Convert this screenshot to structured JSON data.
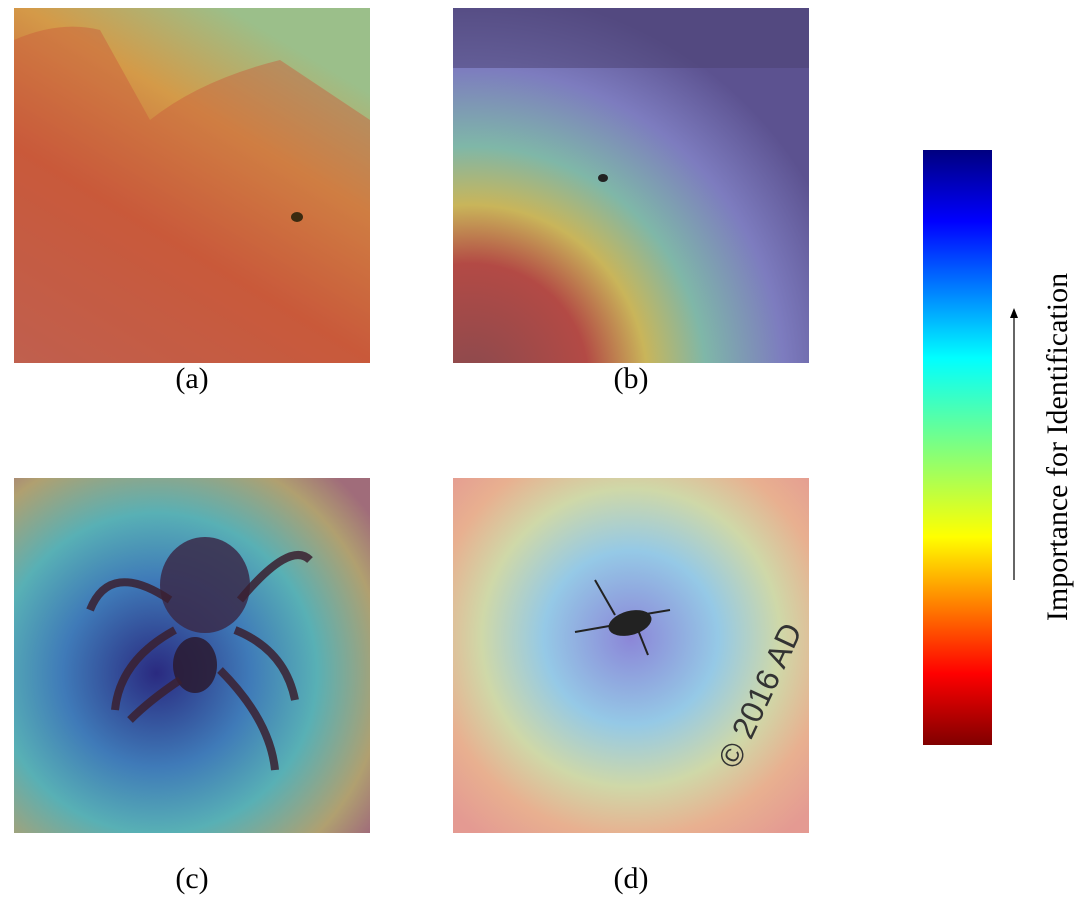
{
  "panels": [
    {
      "caption": "(a)"
    },
    {
      "caption": "(b)"
    },
    {
      "caption": "(c)"
    },
    {
      "caption": "(d)",
      "overlay_text": "© 2016 AD"
    }
  ],
  "colorbar": {
    "label": "Importance for Identification"
  }
}
